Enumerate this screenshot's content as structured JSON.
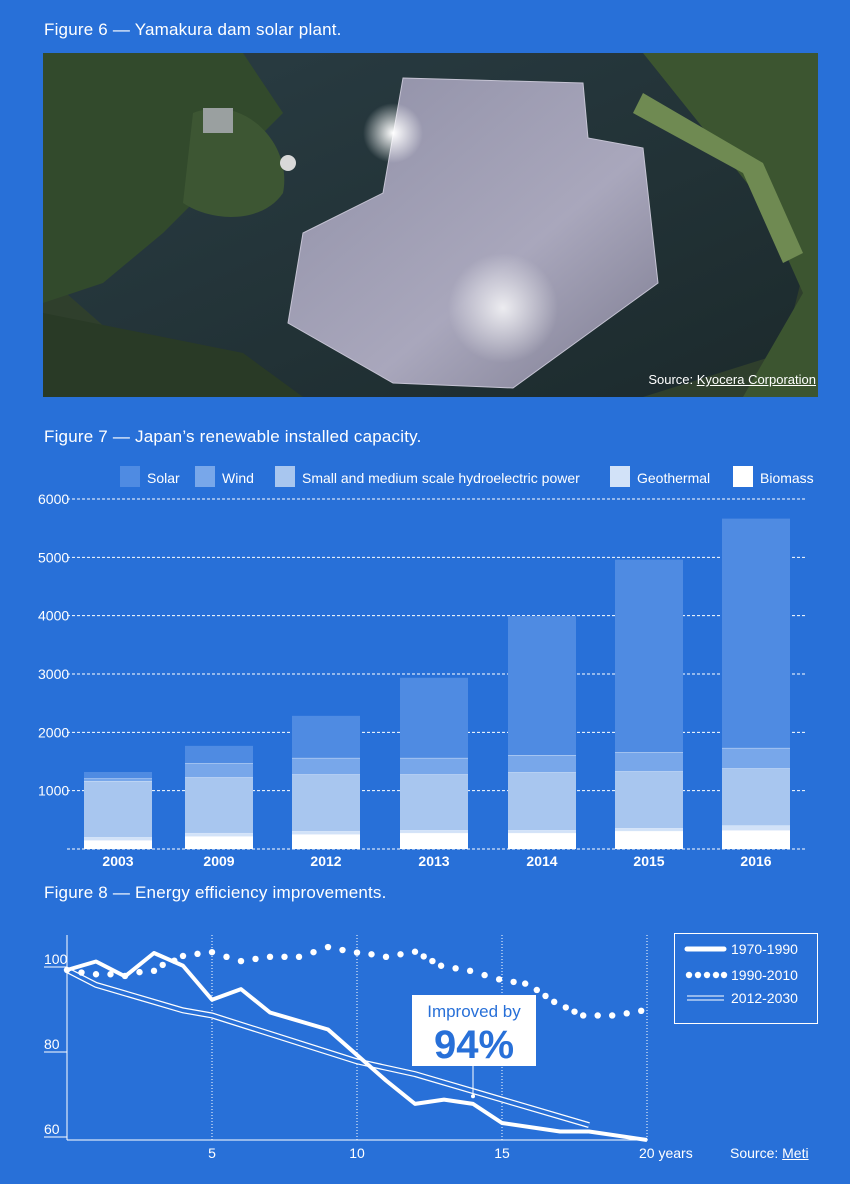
{
  "figure6": {
    "title": "Figure 6 — Yamakura dam solar plant.",
    "source_label": "Source:",
    "source_link": "Kyocera Corporation"
  },
  "figure7": {
    "title": "Figure 7 — Japan’s renewable installed capacity."
  },
  "figure8": {
    "title": "Figure 8 — Energy efficiency improvements.",
    "source_label": "Source:",
    "source_link": "Meti",
    "annotation": {
      "line1": "Improved by",
      "line2": "94%",
      "x": 14,
      "y": 70.3
    }
  },
  "colors": {
    "background": "#2870d8",
    "solar": "#4f8be2",
    "wind": "#78a7ea",
    "hydro": "#a8c6ef",
    "geothermal": "#d2e2f8",
    "biomass": "#ffffff"
  },
  "chart_data": [
    {
      "type": "bar",
      "stacked": true,
      "categories": [
        "2003",
        "2009",
        "2012",
        "2013",
        "2014",
        "2015",
        "2016"
      ],
      "series": [
        {
          "name": "Biomass",
          "values": [
            155,
            223,
            257,
            280,
            280,
            315,
            326
          ]
        },
        {
          "name": "Geothermal",
          "values": [
            50,
            52,
            52,
            46,
            46,
            45,
            80
          ]
        },
        {
          "name": "Small and medium scale hydroelectric power",
          "values": [
            960,
            955,
            972,
            955,
            990,
            973,
            978
          ]
        },
        {
          "name": "Wind",
          "values": [
            45,
            240,
            281,
            281,
            292,
            326,
            349
          ]
        },
        {
          "name": "Solar",
          "values": [
            110,
            298,
            721,
            1373,
            2385,
            3301,
            3931
          ]
        }
      ],
      "legend_order": [
        "Solar",
        "Wind",
        "Small and medium scale hydroelectric power",
        "Geothermal",
        "Biomass"
      ],
      "yticks": [
        "1000",
        "2000",
        "3000",
        "4000",
        "5000",
        "6000"
      ],
      "ylim": [
        0,
        6000
      ],
      "grid": "horizontal dashed",
      "legend": "top"
    },
    {
      "type": "line",
      "xlim": [
        0,
        20
      ],
      "ylim": [
        60,
        108
      ],
      "xticks": [
        "5",
        "10",
        "15",
        "20 years"
      ],
      "xtick_values": [
        5,
        10,
        15,
        20
      ],
      "yticks": [
        "60",
        "80",
        "100"
      ],
      "ytick_values": [
        60,
        80,
        100
      ],
      "grid": "vertical dotted",
      "legend": "top-right",
      "series": [
        {
          "name": "1970-1990",
          "style": "thick solid",
          "x": [
            0,
            1,
            2,
            3,
            4,
            5,
            6,
            7,
            9,
            10,
            11,
            12,
            13,
            14,
            15,
            17,
            18,
            20
          ],
          "y": [
            100,
            102,
            98.5,
            104,
            101,
            93,
            95.5,
            90,
            86,
            80,
            74,
            68.5,
            69.5,
            68.5,
            64,
            62,
            62,
            60
          ]
        },
        {
          "name": "1990-2010",
          "style": "dotted",
          "x": [
            0,
            0.5,
            1,
            1.5,
            2,
            2.5,
            3,
            3.3,
            3.7,
            4,
            4.5,
            5,
            5.5,
            6,
            6.5,
            7,
            7.5,
            8,
            8.5,
            9,
            9.5,
            10,
            10.5,
            11,
            11.5,
            12,
            12.3,
            12.6,
            12.9,
            13.4,
            13.9,
            14.4,
            14.9,
            15.4,
            15.8,
            16.2,
            16.5,
            16.8,
            17.2,
            17.5,
            17.8,
            18.3,
            18.8,
            19.3,
            19.8
          ],
          "y": [
            100,
            99.4,
            99,
            99,
            98.6,
            99.5,
            99.8,
            101.2,
            102.2,
            103.3,
            103.8,
            104.2,
            103.1,
            102.1,
            102.6,
            103.1,
            103.1,
            103.1,
            104.2,
            105.4,
            104.7,
            104.1,
            103.7,
            103.1,
            103.7,
            104.3,
            103.2,
            102.1,
            101,
            100.4,
            99.8,
            98.8,
            97.8,
            97.2,
            96.8,
            95.3,
            93.9,
            92.5,
            91.2,
            90.2,
            89.3,
            89.3,
            89.3,
            89.8,
            90.4
          ]
        },
        {
          "name": "2012-2030",
          "style": "double line",
          "x": [
            0,
            1,
            4,
            5,
            10,
            11,
            12,
            18
          ],
          "y": [
            100,
            96.5,
            90.5,
            89.3,
            78.5,
            77,
            75.5,
            63.5
          ]
        }
      ]
    }
  ]
}
